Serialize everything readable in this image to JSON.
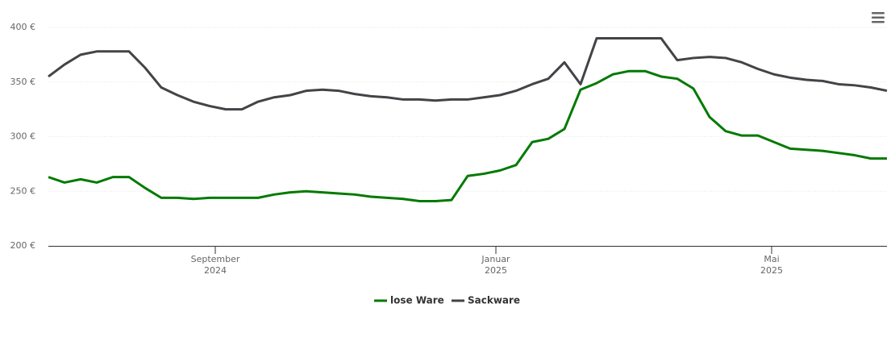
{
  "chart_data": {
    "type": "line",
    "xlim": [
      0,
      52
    ],
    "xticks": [
      {
        "value": 10.35,
        "label": "September\n2024"
      },
      {
        "value": 27.75,
        "label": "Januar\n2025"
      },
      {
        "value": 44.85,
        "label": "Mai\n2025"
      }
    ],
    "ylim": [
      200,
      400
    ],
    "yticks": [
      {
        "value": 200,
        "label": "200 €"
      },
      {
        "value": 250,
        "label": "250 €"
      },
      {
        "value": 300,
        "label": "300 €"
      },
      {
        "value": 350,
        "label": "350 €"
      },
      {
        "value": 400,
        "label": "400 €"
      }
    ],
    "grid": true,
    "series": [
      {
        "name": "lose Ware",
        "color": "#007a00",
        "values": [
          263,
          258,
          261,
          258,
          263,
          263,
          253,
          244,
          244,
          243,
          244,
          244,
          244,
          244,
          247,
          249,
          250,
          249,
          248,
          247,
          245,
          244,
          243,
          241,
          241,
          242,
          264,
          266,
          269,
          274,
          295,
          298,
          307,
          343,
          349,
          357,
          360,
          360,
          355,
          353,
          344,
          318,
          305,
          301,
          301,
          295,
          289,
          288,
          287,
          285,
          283,
          280,
          280
        ]
      },
      {
        "name": "Sackware",
        "color": "#434348",
        "values": [
          355,
          366,
          375,
          378,
          378,
          378,
          363,
          345,
          338,
          332,
          328,
          325,
          325,
          332,
          336,
          338,
          342,
          343,
          342,
          339,
          337,
          336,
          334,
          334,
          333,
          334,
          334,
          336,
          338,
          342,
          348,
          353,
          368,
          348,
          390,
          390,
          390,
          390,
          390,
          370,
          372,
          373,
          372,
          368,
          362,
          357,
          354,
          352,
          351,
          348,
          347,
          345,
          342
        ]
      }
    ]
  }
}
